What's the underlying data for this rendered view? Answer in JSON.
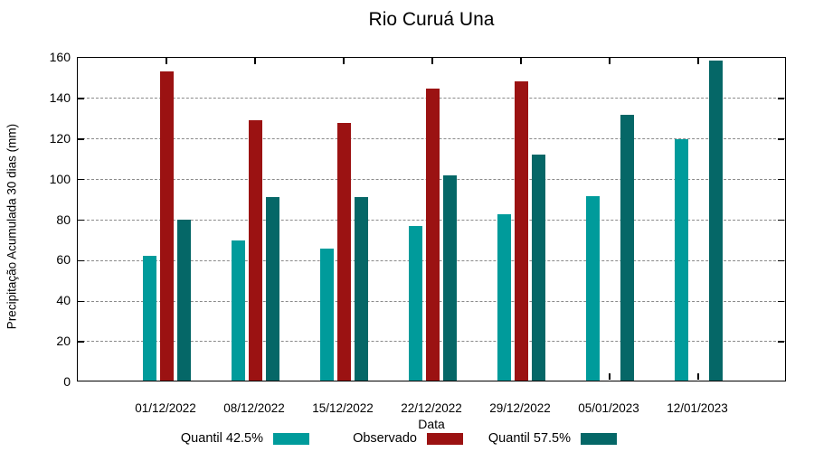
{
  "chart_data": {
    "type": "bar",
    "title": "Rio Curuá Una",
    "xlabel": "Data",
    "ylabel": "Precipitação Acumulada 30 dias (mm)",
    "categories": [
      "01/12/2022",
      "08/12/2022",
      "15/12/2022",
      "22/12/2022",
      "29/12/2022",
      "05/01/2023",
      "12/01/2023"
    ],
    "series": [
      {
        "name": "Quantil 42.5%",
        "color": "#009B9B",
        "values": [
          61.5,
          69,
          65,
          76,
          82,
          91,
          119
        ]
      },
      {
        "name": "Observado",
        "color": "#9B1212",
        "values": [
          152.5,
          128.5,
          127,
          144,
          147.5,
          null,
          null
        ]
      },
      {
        "name": "Quantil 57.5%",
        "color": "#056767",
        "values": [
          79.5,
          90.5,
          90.5,
          101,
          111.5,
          131,
          158
        ]
      }
    ],
    "ylim": [
      0,
      160
    ],
    "yticks": [
      0,
      20,
      40,
      60,
      80,
      100,
      120,
      140,
      160
    ],
    "grid": "horizontal-dashed",
    "legend_position": "bottom"
  }
}
